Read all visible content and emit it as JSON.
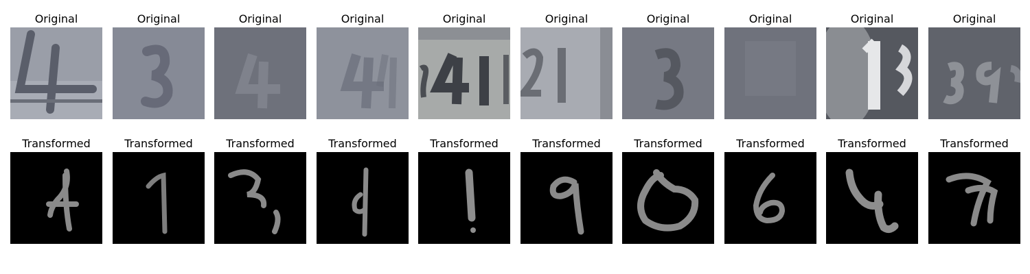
{
  "rows": [
    {
      "label": "Original",
      "panels": [
        {
          "digits": "4"
        },
        {
          "digits": "3"
        },
        {
          "digits": "4"
        },
        {
          "digits": "4"
        },
        {
          "digits": "41"
        },
        {
          "digits": "21"
        },
        {
          "digits": "3"
        },
        {
          "digits": ""
        },
        {
          "digits": "1"
        },
        {
          "digits": "39"
        }
      ]
    },
    {
      "label": "Transformed",
      "panels": [
        {
          "digits": "4"
        },
        {
          "digits": "1"
        },
        {
          "digits": "3"
        },
        {
          "digits": "4"
        },
        {
          "digits": "1"
        },
        {
          "digits": "9"
        },
        {
          "digits": "0"
        },
        {
          "digits": "6"
        },
        {
          "digits": "4"
        },
        {
          "digits": "7"
        }
      ]
    }
  ]
}
